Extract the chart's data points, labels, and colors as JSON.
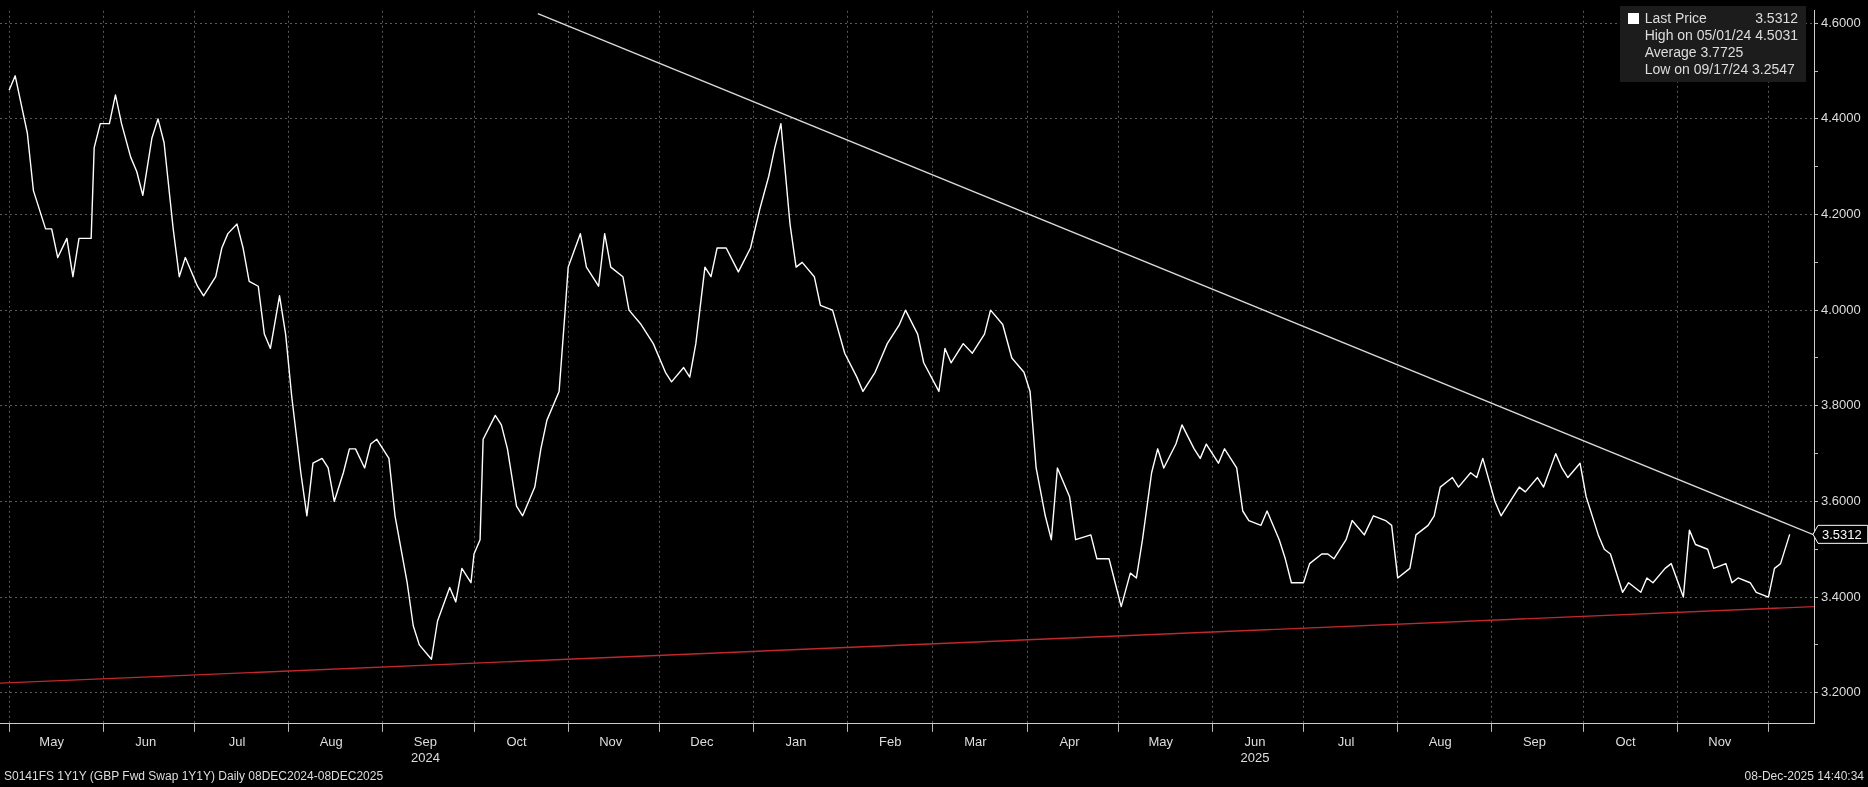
{
  "chart_data": {
    "type": "line",
    "legend": "top right",
    "grid": true,
    "marker": "none",
    "line_style": "solid",
    "xlim": [
      "2024-04-28",
      "2025-12-16"
    ],
    "xticks": [
      {
        "value": "2024-05-01",
        "label": null
      },
      {
        "value": "2024-05-15",
        "label": "May"
      },
      {
        "value": "2024-06-01",
        "label": null
      },
      {
        "value": "2024-06-15",
        "label": "Jun"
      },
      {
        "value": "2024-07-01",
        "label": null
      },
      {
        "value": "2024-07-15",
        "label": "Jul"
      },
      {
        "value": "2024-08-01",
        "label": null
      },
      {
        "value": "2024-08-15",
        "label": "Aug"
      },
      {
        "value": "2024-09-01",
        "label": null
      },
      {
        "value": "2024-09-15",
        "label": "Sep\n2024"
      },
      {
        "value": "2024-10-01",
        "label": null
      },
      {
        "value": "2024-10-15",
        "label": "Oct"
      },
      {
        "value": "2024-11-01",
        "label": null
      },
      {
        "value": "2024-11-15",
        "label": "Nov"
      },
      {
        "value": "2024-12-01",
        "label": null
      },
      {
        "value": "2024-12-15",
        "label": "Dec"
      },
      {
        "value": "2025-01-01",
        "label": null
      },
      {
        "value": "2025-01-15",
        "label": "Jan"
      },
      {
        "value": "2025-02-01",
        "label": null
      },
      {
        "value": "2025-02-15",
        "label": "Feb"
      },
      {
        "value": "2025-03-01",
        "label": null
      },
      {
        "value": "2025-03-15",
        "label": "Mar"
      },
      {
        "value": "2025-04-01",
        "label": null
      },
      {
        "value": "2025-04-15",
        "label": "Apr"
      },
      {
        "value": "2025-05-01",
        "label": null
      },
      {
        "value": "2025-05-15",
        "label": "May"
      },
      {
        "value": "2025-06-01",
        "label": null
      },
      {
        "value": "2025-06-15",
        "label": "Jun\n2025"
      },
      {
        "value": "2025-07-01",
        "label": null
      },
      {
        "value": "2025-07-15",
        "label": "Jul"
      },
      {
        "value": "2025-08-01",
        "label": null
      },
      {
        "value": "2025-08-15",
        "label": "Aug"
      },
      {
        "value": "2025-09-01",
        "label": null
      },
      {
        "value": "2025-09-15",
        "label": "Sep"
      },
      {
        "value": "2025-10-01",
        "label": null
      },
      {
        "value": "2025-10-15",
        "label": "Oct"
      },
      {
        "value": "2025-11-01",
        "label": null
      },
      {
        "value": "2025-11-15",
        "label": "Nov"
      },
      {
        "value": "2025-12-01",
        "label": null
      }
    ],
    "ylim": [
      3.135,
      4.626
    ],
    "yticks": [
      {
        "value": 3.2,
        "label": "3.2000"
      },
      {
        "value": 3.3,
        "label": null
      },
      {
        "value": 3.4,
        "label": "3.4000"
      },
      {
        "value": 3.5,
        "label": null
      },
      {
        "value": 3.6,
        "label": "3.6000"
      },
      {
        "value": 3.7,
        "label": null
      },
      {
        "value": 3.8,
        "label": "3.8000"
      },
      {
        "value": 3.9,
        "label": null
      },
      {
        "value": 4.0,
        "label": "4.0000"
      },
      {
        "value": 4.1,
        "label": null
      },
      {
        "value": 4.2,
        "label": "4.2000"
      },
      {
        "value": 4.3,
        "label": null
      },
      {
        "value": 4.4,
        "label": "4.4000"
      },
      {
        "value": 4.5,
        "label": null
      },
      {
        "value": 4.6,
        "label": "4.6000"
      }
    ],
    "series": [
      {
        "name": "Last Price",
        "color": "#ffffff",
        "x": [
          "2024-05-01",
          "2024-05-03",
          "2024-05-07",
          "2024-05-09",
          "2024-05-13",
          "2024-05-15",
          "2024-05-17",
          "2024-05-20",
          "2024-05-22",
          "2024-05-24",
          "2024-05-28",
          "2024-05-29",
          "2024-05-31",
          "2024-06-03",
          "2024-06-05",
          "2024-06-07",
          "2024-06-10",
          "2024-06-12",
          "2024-06-14",
          "2024-06-17",
          "2024-06-19",
          "2024-06-21",
          "2024-06-24",
          "2024-06-26",
          "2024-06-28",
          "2024-07-02",
          "2024-07-04",
          "2024-07-08",
          "2024-07-10",
          "2024-07-12",
          "2024-07-15",
          "2024-07-17",
          "2024-07-19",
          "2024-07-22",
          "2024-07-24",
          "2024-07-26",
          "2024-07-29",
          "2024-07-31",
          "2024-08-02",
          "2024-08-05",
          "2024-08-07",
          "2024-08-09",
          "2024-08-12",
          "2024-08-14",
          "2024-08-16",
          "2024-08-19",
          "2024-08-21",
          "2024-08-23",
          "2024-08-26",
          "2024-08-28",
          "2024-08-30",
          "2024-09-03",
          "2024-09-05",
          "2024-09-09",
          "2024-09-11",
          "2024-09-13",
          "2024-09-17",
          "2024-09-19",
          "2024-09-23",
          "2024-09-25",
          "2024-09-27",
          "2024-09-30",
          "2024-10-01",
          "2024-10-03",
          "2024-10-04",
          "2024-10-08",
          "2024-10-10",
          "2024-10-12",
          "2024-10-15",
          "2024-10-17",
          "2024-10-21",
          "2024-10-23",
          "2024-10-25",
          "2024-10-29",
          "2024-10-31",
          "2024-11-01",
          "2024-11-05",
          "2024-11-07",
          "2024-11-11",
          "2024-11-13",
          "2024-11-15",
          "2024-11-19",
          "2024-11-21",
          "2024-11-25",
          "2024-11-27",
          "2024-11-29",
          "2024-12-03",
          "2024-12-05",
          "2024-12-09",
          "2024-12-11",
          "2024-12-13",
          "2024-12-16",
          "2024-12-18",
          "2024-12-20",
          "2024-12-23",
          "2024-12-27",
          "2024-12-31",
          "2025-01-03",
          "2025-01-06",
          "2025-01-08",
          "2025-01-10",
          "2025-01-13",
          "2025-01-15",
          "2025-01-17",
          "2025-01-21",
          "2025-01-23",
          "2025-01-27",
          "2025-01-31",
          "2025-02-04",
          "2025-02-06",
          "2025-02-10",
          "2025-02-12",
          "2025-02-14",
          "2025-02-18",
          "2025-02-20",
          "2025-02-24",
          "2025-02-26",
          "2025-03-03",
          "2025-03-05",
          "2025-03-07",
          "2025-03-11",
          "2025-03-14",
          "2025-03-18",
          "2025-03-20",
          "2025-03-24",
          "2025-03-27",
          "2025-03-31",
          "2025-04-02",
          "2025-04-04",
          "2025-04-07",
          "2025-04-09",
          "2025-04-11",
          "2025-04-15",
          "2025-04-17",
          "2025-04-22",
          "2025-04-24",
          "2025-04-28",
          "2025-04-30",
          "2025-05-02",
          "2025-05-05",
          "2025-05-07",
          "2025-05-09",
          "2025-05-12",
          "2025-05-14",
          "2025-05-16",
          "2025-05-20",
          "2025-05-22",
          "2025-05-26",
          "2025-05-28",
          "2025-05-30",
          "2025-06-03",
          "2025-06-05",
          "2025-06-09",
          "2025-06-11",
          "2025-06-13",
          "2025-06-17",
          "2025-06-19",
          "2025-06-23",
          "2025-06-25",
          "2025-06-27",
          "2025-07-01",
          "2025-07-03",
          "2025-07-07",
          "2025-07-09",
          "2025-07-11",
          "2025-07-15",
          "2025-07-17",
          "2025-07-21",
          "2025-07-24",
          "2025-07-28",
          "2025-07-30",
          "2025-08-01",
          "2025-08-05",
          "2025-08-07",
          "2025-08-11",
          "2025-08-13",
          "2025-08-15",
          "2025-08-19",
          "2025-08-21",
          "2025-08-25",
          "2025-08-27",
          "2025-08-29",
          "2025-09-02",
          "2025-09-04",
          "2025-09-08",
          "2025-09-10",
          "2025-09-12",
          "2025-09-16",
          "2025-09-18",
          "2025-09-22",
          "2025-09-24",
          "2025-09-26",
          "2025-09-30",
          "2025-10-02",
          "2025-10-06",
          "2025-10-08",
          "2025-10-10",
          "2025-10-14",
          "2025-10-16",
          "2025-10-20",
          "2025-10-22",
          "2025-10-24",
          "2025-10-28",
          "2025-10-30",
          "2025-11-03",
          "2025-11-05",
          "2025-11-07",
          "2025-11-11",
          "2025-11-13",
          "2025-11-17",
          "2025-11-19",
          "2025-11-21",
          "2025-11-25",
          "2025-11-27",
          "2025-12-01",
          "2025-12-03",
          "2025-12-05",
          "2025-12-08"
        ],
        "values": [
          4.46,
          4.49,
          4.37,
          4.25,
          4.17,
          4.17,
          4.11,
          4.15,
          4.07,
          4.15,
          4.15,
          4.34,
          4.39,
          4.39,
          4.45,
          4.39,
          4.32,
          4.29,
          4.24,
          4.36,
          4.4,
          4.35,
          4.17,
          4.07,
          4.11,
          4.05,
          4.03,
          4.07,
          4.13,
          4.16,
          4.18,
          4.13,
          4.06,
          4.05,
          3.95,
          3.92,
          4.03,
          3.95,
          3.82,
          3.66,
          3.57,
          3.68,
          3.69,
          3.67,
          3.6,
          3.66,
          3.71,
          3.71,
          3.67,
          3.72,
          3.73,
          3.69,
          3.57,
          3.43,
          3.34,
          3.3,
          3.27,
          3.35,
          3.42,
          3.39,
          3.46,
          3.43,
          3.49,
          3.52,
          3.73,
          3.78,
          3.76,
          3.71,
          3.59,
          3.57,
          3.63,
          3.71,
          3.77,
          3.83,
          4.0,
          4.09,
          4.16,
          4.09,
          4.05,
          4.16,
          4.09,
          4.07,
          4.0,
          3.97,
          3.95,
          3.93,
          3.87,
          3.85,
          3.88,
          3.86,
          3.93,
          4.09,
          4.07,
          4.13,
          4.13,
          4.08,
          4.13,
          4.21,
          4.28,
          4.34,
          4.39,
          4.18,
          4.09,
          4.1,
          4.07,
          4.01,
          4.0,
          3.91,
          3.86,
          3.83,
          3.87,
          3.9,
          3.93,
          3.97,
          4.0,
          3.95,
          3.89,
          3.83,
          3.92,
          3.89,
          3.93,
          3.91,
          3.95,
          4.0,
          3.97,
          3.9,
          3.87,
          3.83,
          3.67,
          3.57,
          3.52,
          3.67,
          3.61,
          3.52,
          3.53,
          3.48,
          3.48,
          3.43,
          3.38,
          3.45,
          3.44,
          3.52,
          3.66,
          3.71,
          3.67,
          3.72,
          3.76,
          3.71,
          3.69,
          3.72,
          3.68,
          3.71,
          3.67,
          3.58,
          3.56,
          3.55,
          3.58,
          3.52,
          3.48,
          3.43,
          3.43,
          3.47,
          3.49,
          3.49,
          3.48,
          3.52,
          3.56,
          3.53,
          3.57,
          3.56,
          3.55,
          3.44,
          3.46,
          3.53,
          3.55,
          3.57,
          3.63,
          3.65,
          3.63,
          3.66,
          3.65,
          3.69,
          3.6,
          3.57,
          3.61,
          3.63,
          3.62,
          3.65,
          3.63,
          3.7,
          3.67,
          3.65,
          3.68,
          3.61,
          3.53,
          3.5,
          3.49,
          3.41,
          3.43,
          3.41,
          3.44,
          3.43,
          3.46,
          3.47,
          3.4,
          3.54,
          3.51,
          3.5,
          3.46,
          3.47,
          3.43,
          3.44,
          3.43,
          3.41,
          3.4,
          3.46,
          3.47,
          3.5312
        ]
      },
      {
        "color": "#d9d9d9",
        "x": [
          "2024-10-22",
          "2025-12-16"
        ],
        "values": [
          4.62,
          3.53
        ]
      },
      {
        "color": "#c0282d",
        "x": [
          "2024-04-28",
          "2025-12-16"
        ],
        "values": [
          3.22,
          3.38
        ]
      }
    ],
    "annotations": [
      {
        "text": "3.5312",
        "x": "2025-12-08",
        "y": 3.5312
      },
      "High on 05/01/24 4.5031",
      "Average 3.7725",
      "Low on 09/17/24 3.2547",
      "S0141FS 1Y1Y (GBP Fwd Swap 1Y1Y) Daily 08DEC2024-08DEC2025",
      "08-Dec-2025 14:40:34"
    ]
  }
}
